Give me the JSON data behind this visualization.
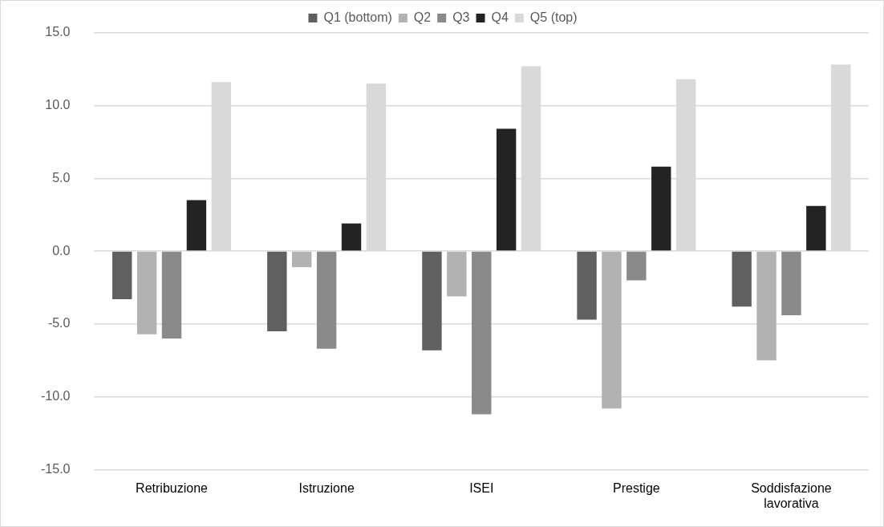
{
  "chart_data": {
    "type": "bar",
    "categories": [
      "Retribuzione",
      "Istruzione",
      "ISEI",
      "Prestige",
      "Soddisfazione lavorativa"
    ],
    "series": [
      {
        "name": "Q1 (bottom)",
        "color": "#606060",
        "values": [
          -3.3,
          -5.5,
          -6.8,
          -4.7,
          -3.8
        ]
      },
      {
        "name": "Q2",
        "color": "#b2b2b2",
        "values": [
          -5.7,
          -1.1,
          -3.1,
          -10.8,
          -7.5
        ]
      },
      {
        "name": "Q3",
        "color": "#8a8a8a",
        "values": [
          -6.0,
          -6.7,
          -11.2,
          -2.0,
          -4.4
        ]
      },
      {
        "name": "Q4",
        "color": "#232323",
        "values": [
          3.5,
          1.9,
          8.4,
          5.8,
          3.1
        ]
      },
      {
        "name": "Q5 (top)",
        "color": "#d9d9d9",
        "values": [
          11.6,
          11.5,
          12.7,
          11.8,
          12.8
        ]
      }
    ],
    "ylim": [
      -15,
      15
    ],
    "yticks": [
      {
        "value": -15,
        "label": "-15.0"
      },
      {
        "value": -10,
        "label": "-10.0"
      },
      {
        "value": -5,
        "label": "-5.0"
      },
      {
        "value": 0,
        "label": "0.0"
      },
      {
        "value": 5,
        "label": "5.0"
      },
      {
        "value": 10,
        "label": "10.0"
      },
      {
        "value": 15,
        "label": "15.0"
      }
    ],
    "grid": "y",
    "legend": "top"
  }
}
